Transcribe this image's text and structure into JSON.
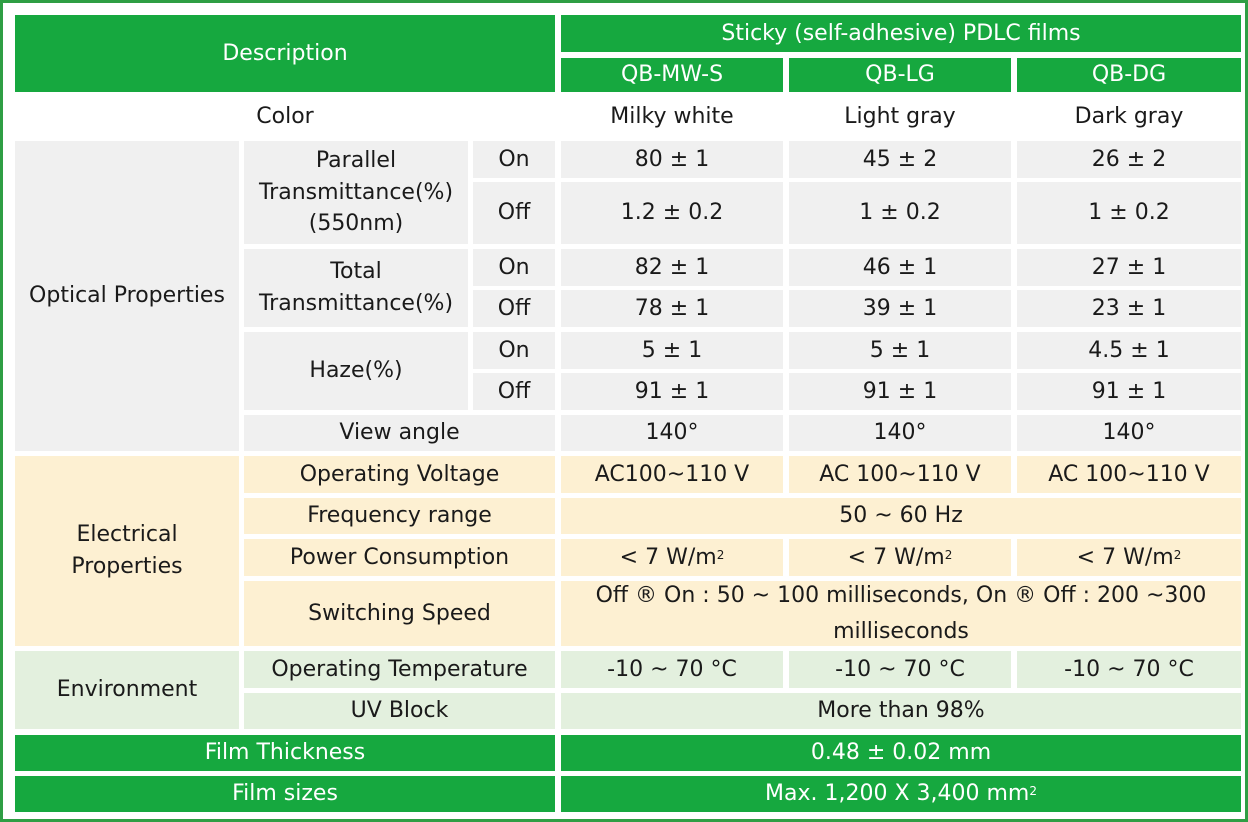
{
  "header": {
    "description": "Description",
    "group_title": "Sticky (self-adhesive) PDLC films",
    "models": [
      "QB-MW-S",
      "QB-LG",
      "QB-DG"
    ]
  },
  "color_row": {
    "label": "Color",
    "values": [
      "Milky white",
      "Light gray",
      "Dark gray"
    ]
  },
  "optical": {
    "category": "Optical  Properties",
    "parallel": {
      "label_lines": [
        "Parallel",
        "Transmittance(%)",
        "(550nm)"
      ],
      "on": {
        "state": "On",
        "values": [
          "80 ± 1",
          "45 ± 2",
          "26 ± 2"
        ]
      },
      "off": {
        "state": "Off",
        "values": [
          "1.2 ± 0.2",
          "1 ± 0.2",
          "1 ± 0.2"
        ]
      }
    },
    "total": {
      "label_lines": [
        "Total",
        "Transmittance(%)"
      ],
      "on": {
        "state": "On",
        "values": [
          "82 ± 1",
          "46 ± 1",
          "27 ± 1"
        ]
      },
      "off": {
        "state": "Off",
        "values": [
          "78 ± 1",
          "39 ± 1",
          "23 ± 1"
        ]
      }
    },
    "haze": {
      "label": "Haze(%)",
      "on": {
        "state": "On",
        "values": [
          "5 ± 1",
          "5 ± 1",
          "4.5 ± 1"
        ]
      },
      "off": {
        "state": "Off",
        "values": [
          "91 ± 1",
          "91 ± 1",
          "91 ± 1"
        ]
      }
    },
    "view_angle": {
      "label": "View angle",
      "values": [
        "140°",
        "140°",
        "140°"
      ]
    }
  },
  "electrical": {
    "category_lines": [
      "Electrical",
      "Properties"
    ],
    "voltage": {
      "label": "Operating Voltage",
      "values": [
        "AC100~110 V",
        "AC 100~110 V",
        "AC 100~110 V"
      ]
    },
    "frequency": {
      "label": "Frequency range",
      "value": "50 ~ 60 Hz"
    },
    "power": {
      "label": "Power Consumption",
      "value": "< 7 W/m",
      "sup": "2"
    },
    "switching": {
      "label": "Switching Speed",
      "value_lines": [
        "Off ® On : 50 ~ 100 milliseconds, On ® Off : 200 ~300",
        "milliseconds"
      ]
    }
  },
  "environment": {
    "category": "Environment",
    "temperature": {
      "label": "Operating Temperature",
      "values": [
        "-10 ~ 70 °C",
        "-10 ~ 70 °C",
        "-10 ~ 70 °C"
      ]
    },
    "uv": {
      "label": "UV Block",
      "value": "More than 98%"
    }
  },
  "thickness": {
    "label": "Film Thickness",
    "value": "0.48 ±  0.02 mm"
  },
  "sizes": {
    "label": "Film sizes",
    "value": "Max. 1,200 X 3,400 mm",
    "sup": "2"
  }
}
